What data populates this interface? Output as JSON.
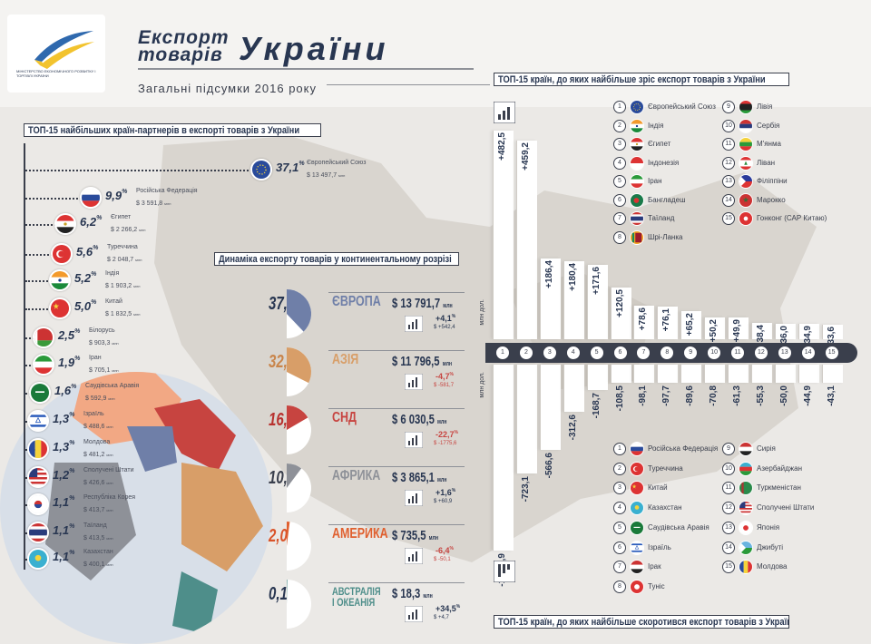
{
  "header": {
    "logo_text": "МІНІСТЕРСТВО ЕКОНОМІЧНОГО РОЗВИТКУ І ТОРГІВЛІ УКРАЇНИ",
    "title_line1": "Експорт",
    "title_line2": "товарів",
    "title_big": "України",
    "subtitle": "Загальні підсумки 2016 року"
  },
  "partners": {
    "section_title": "ТОП-15 найбільших країн-партнерів в експорті товарів з України",
    "unit_suffix": "млн",
    "items": [
      {
        "name": "Європейський Союз",
        "pct": "37,1",
        "usd": "$ 13 497,7",
        "flag": "eu"
      },
      {
        "name": "Російська Федерація",
        "pct": "9,9",
        "usd": "$ 3 591,8",
        "flag": "ru"
      },
      {
        "name": "Єгипет",
        "pct": "6,2",
        "usd": "$ 2 266,2",
        "flag": "eg"
      },
      {
        "name": "Туреччина",
        "pct": "5,6",
        "usd": "$ 2 048,7",
        "flag": "tr"
      },
      {
        "name": "Індія",
        "pct": "5,2",
        "usd": "$ 1 903,2",
        "flag": "in"
      },
      {
        "name": "Китай",
        "pct": "5,0",
        "usd": "$ 1 832,5",
        "flag": "cn"
      },
      {
        "name": "Білорусь",
        "pct": "2,5",
        "usd": "$ 903,3",
        "flag": "by"
      },
      {
        "name": "Іран",
        "pct": "1,9",
        "usd": "$ 705,1",
        "flag": "ir"
      },
      {
        "name": "Саудівська Аравія",
        "pct": "1,6",
        "usd": "$ 592,9",
        "flag": "sa"
      },
      {
        "name": "Ізраїль",
        "pct": "1,3",
        "usd": "$ 488,6",
        "flag": "il"
      },
      {
        "name": "Молдова",
        "pct": "1,3",
        "usd": "$ 481,2",
        "flag": "md"
      },
      {
        "name": "Сполучені Штати",
        "pct": "1,2",
        "usd": "$ 426,6",
        "flag": "us"
      },
      {
        "name": "Республіка Корея",
        "pct": "1,1",
        "usd": "$ 413,7",
        "flag": "kr"
      },
      {
        "name": "Таїланд",
        "pct": "1,1",
        "usd": "$ 413,5",
        "flag": "th"
      },
      {
        "name": "Казахстан",
        "pct": "1,1",
        "usd": "$ 400,1",
        "flag": "kz"
      }
    ]
  },
  "continents": {
    "section_title": "Динаміка експорту товарів у континентальному розрізі",
    "unit": "млн",
    "items": [
      {
        "name": "ЄВРОПА",
        "pct": "37,9",
        "share": 37.9,
        "value": "$ 13 791,7",
        "change": "+4,1",
        "change_abs": "+542,4",
        "color": "#6f7fa8",
        "pct_color": "#283651"
      },
      {
        "name": "АЗІЯ",
        "pct": "32,4",
        "share": 32.4,
        "value": "$ 11 796,5",
        "change": "-4,7",
        "change_abs": "-581,7",
        "color": "#d89e68",
        "pct_color": "#c9854b"
      },
      {
        "name": "СНД",
        "pct": "16,6",
        "share": 16.6,
        "value": "$ 6 030,5",
        "change": "-22,7",
        "change_abs": "-1775,6",
        "color": "#c74440",
        "pct_color": "#b8312e"
      },
      {
        "name": "АФРИКА",
        "pct": "10,2",
        "share": 10.2,
        "value": "$ 3 865,1",
        "change": "+1,6",
        "change_abs": "+60,9",
        "color": "#8e9198",
        "pct_color": "#3a3f4c"
      },
      {
        "name": "АМЕРИКА",
        "pct": "2,0",
        "share": 2.0,
        "value": "$ 735,5",
        "change": "-6,4",
        "change_abs": "-50,1",
        "color": "#e0602f",
        "pct_color": "#d9542a"
      },
      {
        "name": "АВСТРАЛІЯ І ОКЕАНІЯ",
        "pct": "0,1",
        "share": 0.1,
        "value": "$ 18,3",
        "change": "+34,5",
        "change_abs": "+4,7",
        "color": "#4e8e8a",
        "pct_color": "#283651"
      }
    ]
  },
  "growth": {
    "section_title": "ТОП-15 країн, до яких найбільше зріс експорт товарів з України",
    "axis_label": "млн дол.",
    "legend": [
      {
        "n": "1",
        "name": "Європейський Союз",
        "flag": "eu"
      },
      {
        "n": "2",
        "name": "Індія",
        "flag": "in"
      },
      {
        "n": "3",
        "name": "Єгипет",
        "flag": "eg"
      },
      {
        "n": "4",
        "name": "Індонезія",
        "flag": "id"
      },
      {
        "n": "5",
        "name": "Іран",
        "flag": "ir"
      },
      {
        "n": "6",
        "name": "Бангладеш",
        "flag": "bd"
      },
      {
        "n": "7",
        "name": "Таїланд",
        "flag": "th"
      },
      {
        "n": "8",
        "name": "Шрі-Ланка",
        "flag": "lk"
      },
      {
        "n": "9",
        "name": "Лівія",
        "flag": "ly"
      },
      {
        "n": "10",
        "name": "Сербія",
        "flag": "rs"
      },
      {
        "n": "11",
        "name": "М'янма",
        "flag": "mm"
      },
      {
        "n": "12",
        "name": "Ліван",
        "flag": "lb"
      },
      {
        "n": "13",
        "name": "Філіппіни",
        "flag": "ph"
      },
      {
        "n": "14",
        "name": "Марокко",
        "flag": "ma"
      },
      {
        "n": "15",
        "name": "Гонконг (САР Китаю)",
        "flag": "hk"
      }
    ]
  },
  "decline": {
    "section_title": "ТОП-15 країн, до яких найбільше скоротився експорт товарів з України",
    "axis_label": "млн дол.",
    "legend": [
      {
        "n": "1",
        "name": "Російська Федерація",
        "flag": "ru"
      },
      {
        "n": "2",
        "name": "Туреччина",
        "flag": "tr"
      },
      {
        "n": "3",
        "name": "Китай",
        "flag": "cn"
      },
      {
        "n": "4",
        "name": "Казахстан",
        "flag": "kz"
      },
      {
        "n": "5",
        "name": "Саудівська Аравія",
        "flag": "sa"
      },
      {
        "n": "6",
        "name": "Ізраїль",
        "flag": "il"
      },
      {
        "n": "7",
        "name": "Ірак",
        "flag": "iq"
      },
      {
        "n": "8",
        "name": "Туніс",
        "flag": "tn"
      },
      {
        "n": "9",
        "name": "Сирія",
        "flag": "sy"
      },
      {
        "n": "10",
        "name": "Азербайджан",
        "flag": "az"
      },
      {
        "n": "11",
        "name": "Туркменістан",
        "flag": "tm"
      },
      {
        "n": "12",
        "name": "Сполучені Штати",
        "flag": "us"
      },
      {
        "n": "13",
        "name": "Японія",
        "flag": "jp"
      },
      {
        "n": "14",
        "name": "Джибуті",
        "flag": "dj"
      },
      {
        "n": "15",
        "name": "Молдова",
        "flag": "md"
      }
    ]
  },
  "chart_data": [
    {
      "type": "bar",
      "title": "ТОП-15 країн, до яких найбільше зріс експорт товарів з України",
      "ylabel": "млн дол.",
      "categories": [
        "1",
        "2",
        "3",
        "4",
        "5",
        "6",
        "7",
        "8",
        "9",
        "10",
        "11",
        "12",
        "13",
        "14",
        "15"
      ],
      "values": [
        482.5,
        459.2,
        186.4,
        180.4,
        171.6,
        120.5,
        78.6,
        76.1,
        65.2,
        50.2,
        49.9,
        38.4,
        36.0,
        34.9,
        33.6
      ],
      "labels": [
        "+482,5",
        "+459,2",
        "+186,4",
        "+180,4",
        "+171,6",
        "+120,5",
        "+78,6",
        "+76,1",
        "+65,2",
        "+50,2",
        "+49,9",
        "+38,4",
        "+36,0",
        "+34,9",
        "+33,6"
      ]
    },
    {
      "type": "bar",
      "title": "ТОП-15 країн, до яких найбільше скоротився експорт товарів з України",
      "ylabel": "млн дол.",
      "categories": [
        "1",
        "2",
        "3",
        "4",
        "5",
        "6",
        "7",
        "8",
        "9",
        "10",
        "11",
        "12",
        "13",
        "14",
        "15"
      ],
      "values": [
        -1235.9,
        -723.1,
        -566.6,
        -312.6,
        -168.7,
        -108.5,
        -98.1,
        -97.7,
        -89.6,
        -70.8,
        -61.3,
        -55.3,
        -50.0,
        -44.9,
        -43.1
      ],
      "labels": [
        "-1 235,9",
        "-723,1",
        "-566,6",
        "-312,6",
        "-168,7",
        "-108,5",
        "-98,1",
        "-97,7",
        "-89,6",
        "-70,8",
        "-61,3",
        "-55,3",
        "-50,0",
        "-44,9",
        "-43,1"
      ]
    },
    {
      "type": "pie",
      "title": "Динаміка експорту товарів у континентальному розрізі",
      "categories": [
        "ЄВРОПА",
        "АЗІЯ",
        "СНД",
        "АФРИКА",
        "АМЕРИКА",
        "АВСТРАЛІЯ І ОКЕАНІЯ"
      ],
      "values": [
        37.9,
        32.4,
        16.6,
        10.2,
        2.0,
        0.1
      ]
    }
  ]
}
